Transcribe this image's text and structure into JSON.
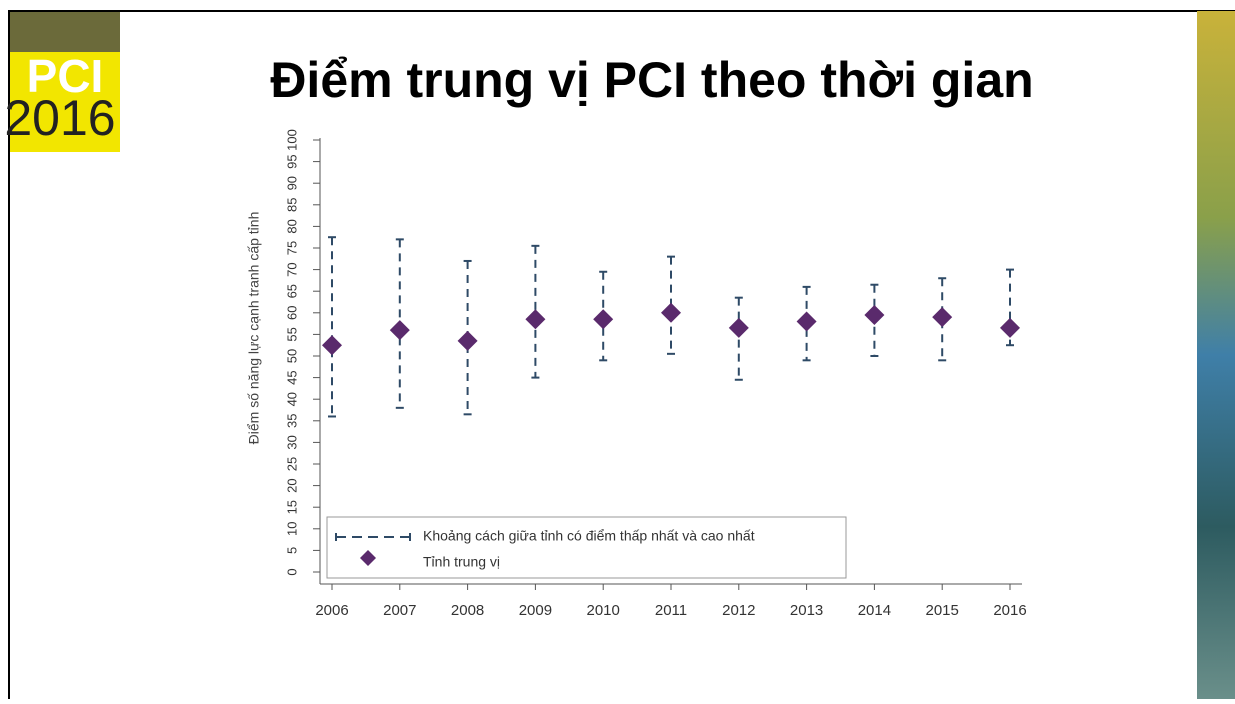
{
  "logo": {
    "text": "PCI",
    "year": "2016"
  },
  "chart_data": {
    "type": "errorbar",
    "title": "Điểm trung vị PCI theo thời gian",
    "y_label": "Điểm số năng lực cạnh tranh cấp tỉnh",
    "categories": [
      "2006",
      "2007",
      "2008",
      "2009",
      "2010",
      "2011",
      "2012",
      "2013",
      "2014",
      "2015",
      "2016"
    ],
    "series": [
      {
        "name": "Khoảng cách giữa tỉnh có điểm thấp nhất và cao nhất",
        "color": "#2e4a66",
        "low": [
          36,
          38,
          36.5,
          45,
          49,
          50.5,
          44.5,
          49,
          50,
          49,
          52.5
        ],
        "high": [
          77.5,
          77,
          72,
          75.5,
          69.5,
          73,
          63.5,
          66,
          66.5,
          68,
          70
        ]
      },
      {
        "name": "Tỉnh trung vị",
        "color": "#5a2a6c",
        "values": [
          52.5,
          56,
          53.5,
          58.5,
          58.5,
          60,
          56.5,
          58,
          59.5,
          59,
          56.5
        ]
      }
    ],
    "ylim": [
      0,
      100
    ],
    "yticks": [
      0,
      5,
      10,
      15,
      20,
      25,
      30,
      35,
      40,
      45,
      50,
      55,
      60,
      65,
      70,
      75,
      80,
      85,
      90,
      95,
      100
    ],
    "legend": "bottom-left"
  }
}
